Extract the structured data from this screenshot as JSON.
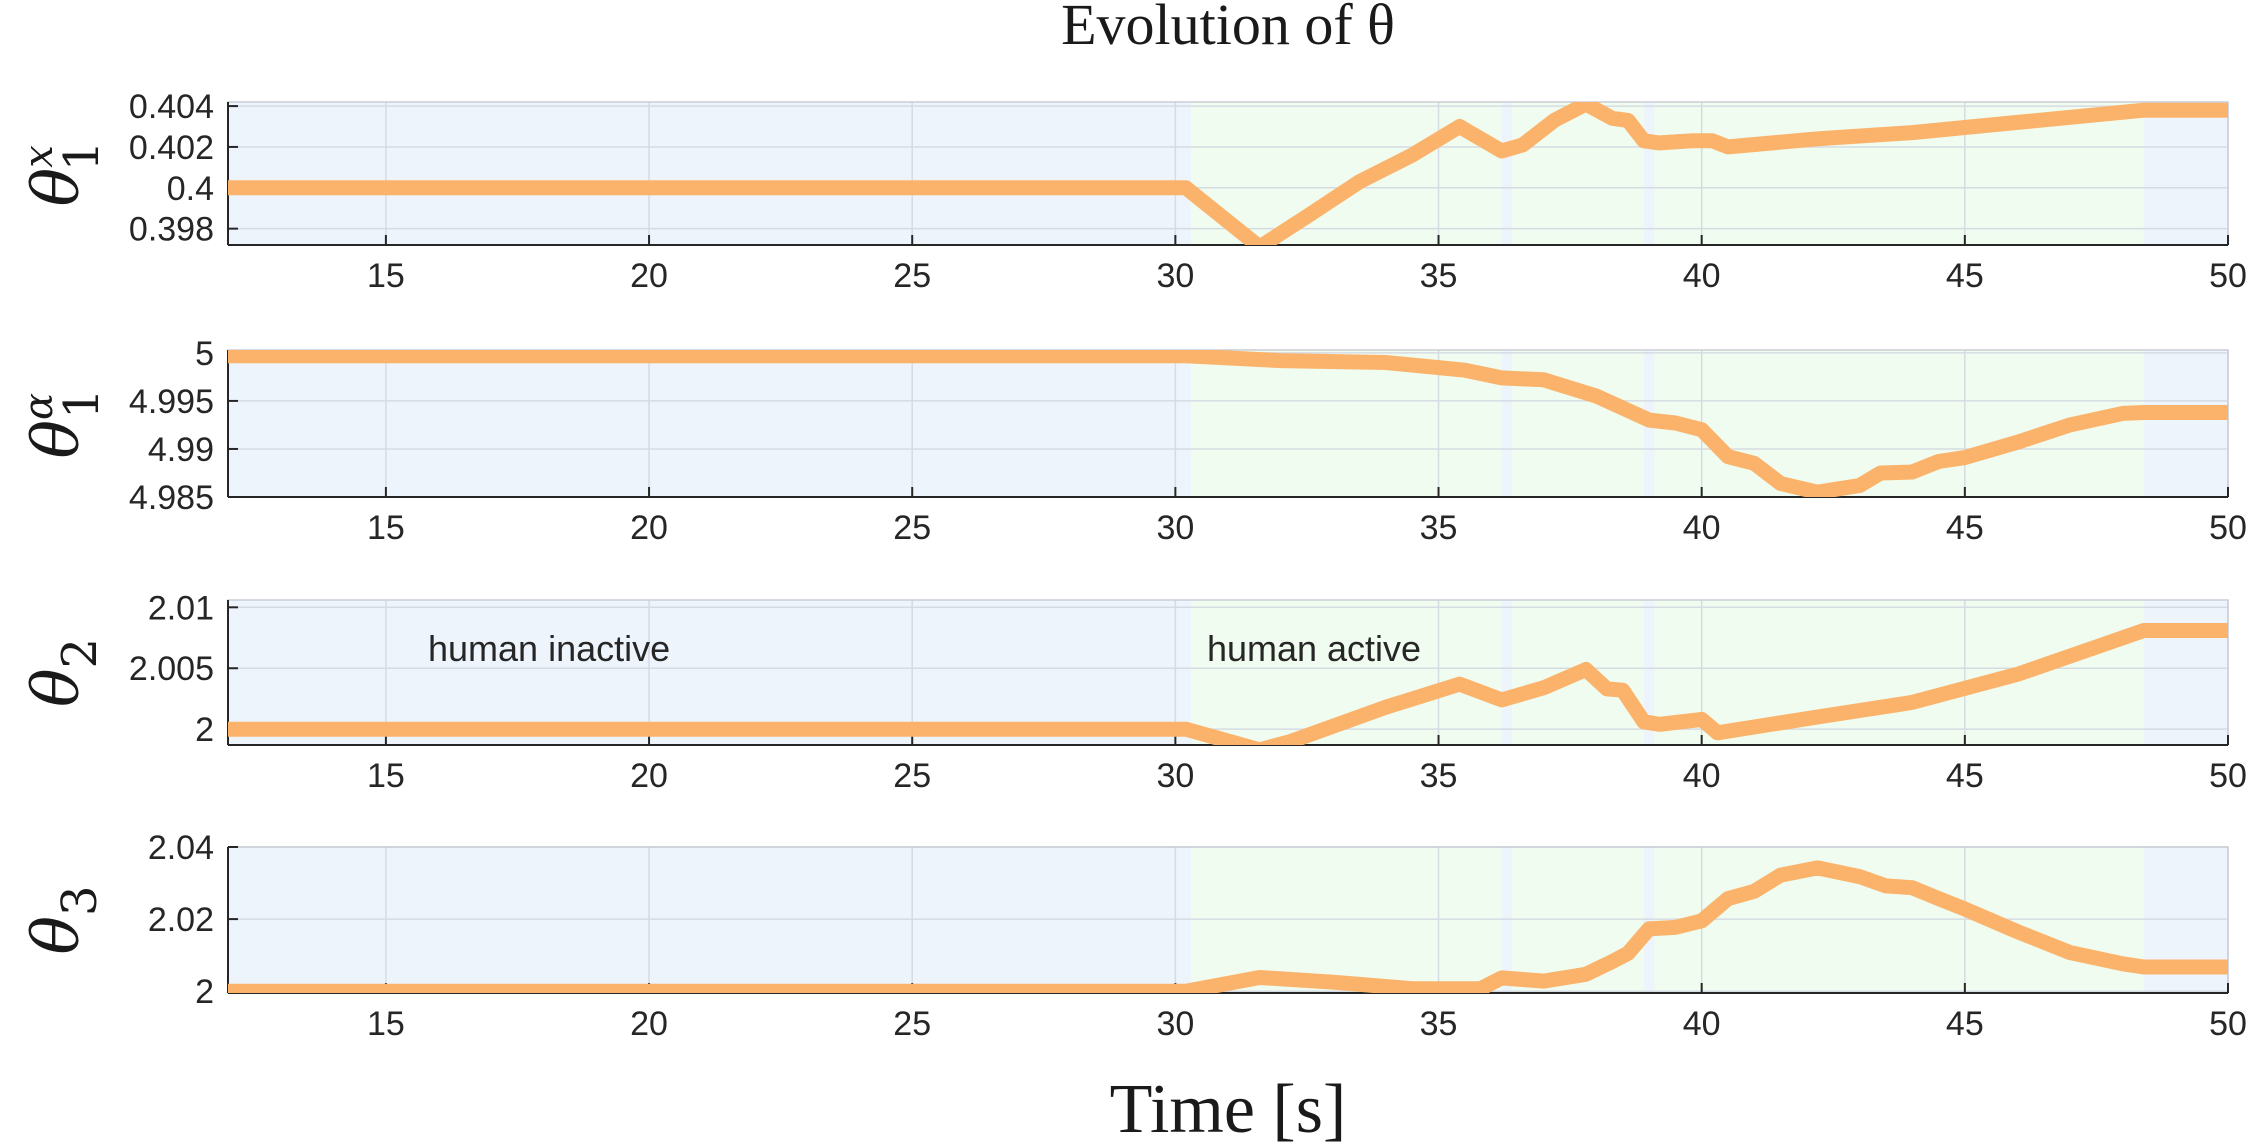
{
  "chart_data": {
    "title": "Evolution of θ",
    "xlabel": "Time [s]",
    "xlim": [
      12,
      50
    ],
    "xticks": [
      15,
      20,
      25,
      30,
      35,
      40,
      45,
      50
    ],
    "line_color": "#fbb36b",
    "phases": [
      {
        "label": "human inactive",
        "start": 12,
        "end": 30.3,
        "color": "#edf4fc"
      },
      {
        "label": "human active",
        "start": 30.3,
        "end": 36.2,
        "color": "#effcef"
      },
      {
        "label": "",
        "start": 36.2,
        "end": 36.4,
        "color": "#edf4fc"
      },
      {
        "label": "",
        "start": 36.4,
        "end": 38.9,
        "color": "#effcef"
      },
      {
        "label": "",
        "start": 38.9,
        "end": 39.1,
        "color": "#edf4fc"
      },
      {
        "label": "",
        "start": 39.1,
        "end": 48.4,
        "color": "#effcef"
      },
      {
        "label": "",
        "start": 48.4,
        "end": 50,
        "color": "#edf4fc"
      }
    ],
    "phase_annotations": [
      {
        "text": "human inactive",
        "x": 15.8,
        "subplot": 3
      },
      {
        "text": "human active",
        "x": 30.6,
        "subplot": 3
      }
    ],
    "subplots": [
      {
        "type": "line",
        "ylabel": {
          "base": "θ",
          "sup": "x",
          "sub": "1"
        },
        "ylim": [
          0.3972,
          0.4042
        ],
        "yticks": [
          0.398,
          0.4,
          0.402,
          0.404
        ],
        "ytick_labels": [
          "0.398",
          "0.4",
          "0.402",
          "0.404"
        ],
        "x": [
          12,
          30.2,
          31.6,
          32.5,
          33.5,
          34.5,
          35.4,
          36.2,
          36.6,
          37.2,
          37.8,
          38.3,
          38.6,
          38.9,
          39.2,
          39.8,
          40.2,
          40.5,
          42.2,
          44,
          46,
          48.4,
          50
        ],
        "y": [
          0.4,
          0.4,
          0.3971,
          0.3986,
          0.4003,
          0.4016,
          0.403,
          0.4018,
          0.4021,
          0.4033,
          0.4041,
          0.4034,
          0.4033,
          0.4023,
          0.4022,
          0.4023,
          0.4023,
          0.402,
          0.4024,
          0.4027,
          0.4032,
          0.4038,
          0.4038
        ]
      },
      {
        "type": "line",
        "ylabel": {
          "base": "θ",
          "sup": "α",
          "sub": "1"
        },
        "ylim": [
          4.985,
          5.0003
        ],
        "yticks": [
          4.985,
          4.99,
          4.995,
          5
        ],
        "ytick_labels": [
          "4.985",
          "4.99",
          "4.995",
          "5"
        ],
        "x": [
          12,
          30.2,
          32,
          34,
          35.5,
          36.2,
          37,
          38,
          39,
          39.5,
          40,
          40.5,
          41,
          41.5,
          42.2,
          43,
          43.4,
          44,
          44.5,
          45,
          46,
          47,
          48,
          48.4,
          50
        ],
        "y": [
          4.9997,
          4.9997,
          4.9992,
          4.999,
          4.9982,
          4.9974,
          4.9972,
          4.9955,
          4.993,
          4.9927,
          4.992,
          4.9892,
          4.9885,
          4.9864,
          4.9855,
          4.9862,
          4.9875,
          4.9876,
          4.9887,
          4.9891,
          4.9907,
          4.9925,
          4.9937,
          4.9938,
          4.9938
        ]
      },
      {
        "type": "line",
        "ylabel": {
          "base": "θ",
          "sup": "",
          "sub": "2"
        },
        "ylim": [
          1.9987,
          2.0106
        ],
        "yticks": [
          2,
          2.005,
          2.01
        ],
        "ytick_labels": [
          "2",
          "2.005",
          "2.01"
        ],
        "x": [
          12,
          30.2,
          31.6,
          32.2,
          34,
          35.4,
          36.2,
          37,
          37.8,
          38.2,
          38.5,
          38.9,
          39.2,
          40,
          40.3,
          42.2,
          44,
          46,
          48.4,
          50
        ],
        "y": [
          2.0,
          2.0,
          1.9983,
          1.999,
          2.0018,
          2.0037,
          2.0024,
          2.0034,
          2.0049,
          2.0033,
          2.0032,
          2.0006,
          2.0004,
          2.0008,
          1.9997,
          2.001,
          2.0022,
          2.0045,
          2.0081,
          2.0081
        ]
      },
      {
        "type": "line",
        "ylabel": {
          "base": "θ",
          "sup": "",
          "sub": "3"
        },
        "ylim": [
          1.9995,
          2.04
        ],
        "yticks": [
          2,
          2.02,
          2.04
        ],
        "ytick_labels": [
          "2",
          "2.02",
          "2.04"
        ],
        "x": [
          12,
          30.2,
          31.6,
          33,
          34.5,
          35.8,
          36.2,
          37,
          37.8,
          38.3,
          38.6,
          39,
          39.5,
          40,
          40.5,
          41,
          41.5,
          42.2,
          43,
          43.5,
          44,
          44.5,
          45,
          46,
          47,
          48,
          48.4,
          50
        ],
        "y": [
          2.0,
          2.0,
          2.0038,
          2.0025,
          2.0007,
          2.0007,
          2.0037,
          2.0028,
          2.0047,
          2.0082,
          2.0105,
          2.0173,
          2.0177,
          2.0195,
          2.0257,
          2.0277,
          2.0322,
          2.0342,
          2.0318,
          2.0292,
          2.0287,
          2.0257,
          2.0228,
          2.0165,
          2.0107,
          2.0076,
          2.0067,
          2.0067
        ]
      }
    ]
  }
}
